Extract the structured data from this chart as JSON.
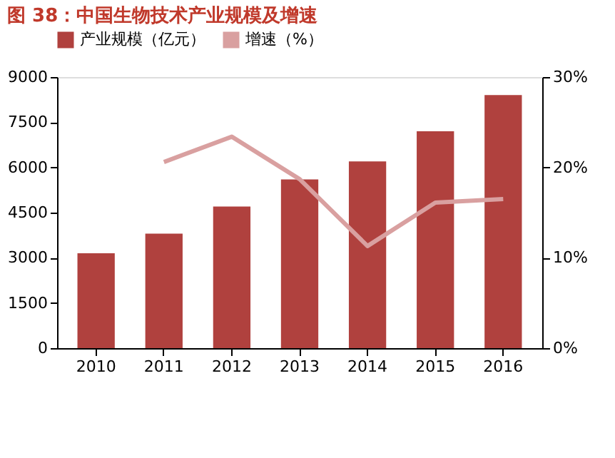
{
  "chart_data": {
    "type": "bar",
    "title": "图 38：中国生物技术产业规模及增速",
    "categories": [
      "2010",
      "2011",
      "2012",
      "2013",
      "2014",
      "2015",
      "2016"
    ],
    "series": [
      {
        "name": "产业规模（亿元）",
        "color": "#b0413e",
        "values": [
          3150,
          3800,
          4700,
          5600,
          6200,
          7200,
          8400
        ]
      },
      {
        "name": "增速（%）",
        "type": "line",
        "axis": "y2",
        "color": "#d9a0a0",
        "values": [
          null,
          20.6,
          23.4,
          18.7,
          11.3,
          16.1,
          16.5
        ]
      }
    ],
    "ylim": [
      0,
      9000
    ],
    "yticks": [
      0,
      1500,
      3000,
      4500,
      6000,
      7500,
      9000
    ],
    "y2lim": [
      0,
      30
    ],
    "y2ticks": [
      {
        "value": 0,
        "label": "0%"
      },
      {
        "value": 10,
        "label": "10%"
      },
      {
        "value": 20,
        "label": "20%"
      },
      {
        "value": 30,
        "label": "30%"
      }
    ],
    "grid": false,
    "legend": "top",
    "line_style": "solid",
    "marker": "none"
  }
}
